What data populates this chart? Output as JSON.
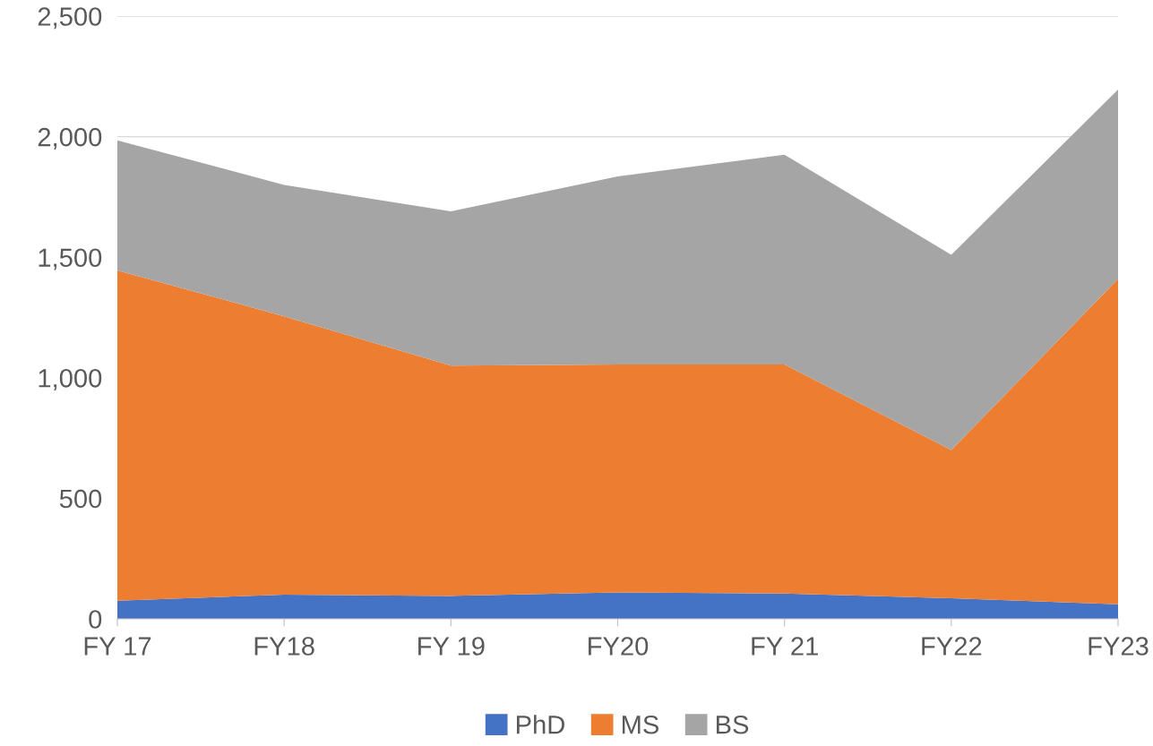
{
  "chart_data": {
    "type": "area",
    "stacked": true,
    "categories": [
      "FY 17",
      "FY18",
      "FY 19",
      "FY20",
      "FY 21",
      "FY22",
      "FY23"
    ],
    "series": [
      {
        "name": "PhD",
        "color": "#4472c4",
        "values": [
          75,
          100,
          95,
          110,
          105,
          85,
          60
        ]
      },
      {
        "name": "MS",
        "color": "#ed7d31",
        "values": [
          1370,
          1155,
          955,
          945,
          950,
          615,
          1350
        ]
      },
      {
        "name": "BS",
        "color": "#a5a5a5",
        "values": [
          540,
          545,
          640,
          780,
          870,
          810,
          785
        ]
      }
    ],
    "ylim": [
      0,
      2500
    ],
    "yticks": [
      0,
      500,
      {
        "value": 1000,
        "label": "1,000"
      },
      {
        "value": 1500,
        "label": "1,500"
      },
      {
        "value": 2000,
        "label": "2,000"
      },
      {
        "value": 2500,
        "label": "2,500"
      }
    ],
    "grid": "y",
    "legend": "bottom"
  }
}
